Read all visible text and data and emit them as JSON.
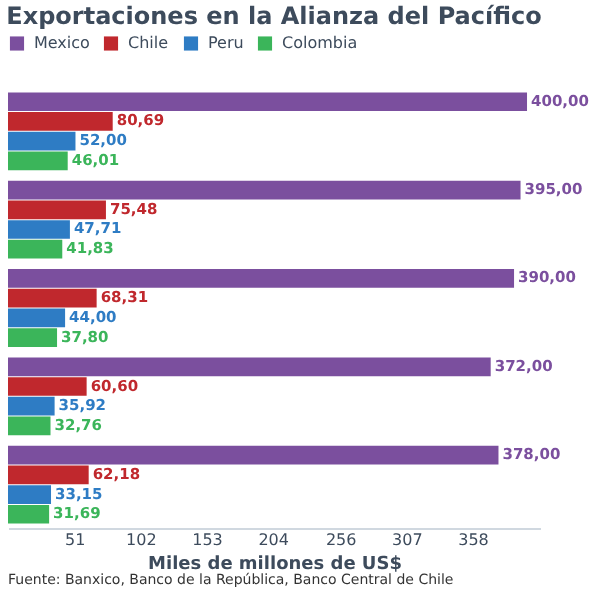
{
  "chart_data": {
    "type": "bar",
    "orientation": "horizontal",
    "title": "Exportaciones en la Alianza del Pacífico",
    "xlabel": "Miles de millones de US$",
    "categories": [
      null,
      null,
      null,
      null,
      null
    ],
    "series": [
      {
        "name": "Mexico",
        "color": "#7b4f9e",
        "values": [
          400,
          395,
          390,
          372,
          378
        ],
        "value_labels": [
          "400,00",
          "395,00",
          "390,00",
          "372,00",
          "378,00"
        ]
      },
      {
        "name": "Chile",
        "color": "#c0282d",
        "values": [
          80.69,
          75.48,
          68.31,
          60.6,
          62.18
        ],
        "value_labels": [
          "80,69",
          "75,48",
          "68,31",
          "60,60",
          "62,18"
        ]
      },
      {
        "name": "Peru",
        "color": "#2e7cc4",
        "values": [
          52,
          47.71,
          44,
          35.92,
          33.15
        ],
        "value_labels": [
          "52,00",
          "47,71",
          "44,00",
          "35,92",
          "33,15"
        ]
      },
      {
        "name": "Colombia",
        "color": "#3bb55a",
        "values": [
          46.01,
          41.83,
          37.8,
          32.76,
          31.69
        ],
        "value_labels": [
          "46,01",
          "41,83",
          "37,80",
          "32,76",
          "31,69"
        ]
      }
    ],
    "xlim": [
      0,
      410
    ],
    "xticks": [
      51,
      102,
      153,
      204,
      256,
      307,
      358
    ],
    "legend": "top",
    "grid": false,
    "annotations": [
      "Fuente: Banxico, Banco de la República, Banco Central de Chile"
    ]
  }
}
